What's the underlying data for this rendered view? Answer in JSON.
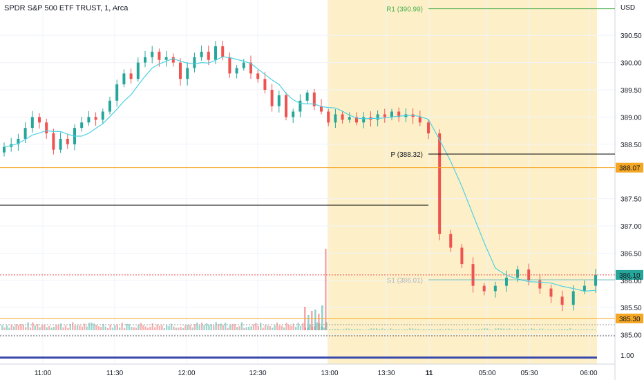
{
  "header": {
    "title": "SPDR S&P 500 ETF TRUST, 1, Arca"
  },
  "chart_data": {
    "type": "candlestick",
    "currency_label": "USD",
    "y_ticks": [
      "390.50",
      "390.00",
      "389.50",
      "389.00",
      "388.50",
      "387.50",
      "387.00",
      "386.50",
      "386.00",
      "385.50",
      "385.00"
    ],
    "y_tick_values": [
      390.5,
      390.0,
      389.5,
      389.0,
      388.5,
      387.5,
      387.0,
      386.5,
      386.0,
      385.5,
      385.0
    ],
    "y_range": [
      384.55,
      391.15
    ],
    "volume_scale_label": "1.00",
    "x_ticks": [
      {
        "label": "11:00",
        "bold": false
      },
      {
        "label": "11:30",
        "bold": false
      },
      {
        "label": "12:00",
        "bold": false
      },
      {
        "label": "12:30",
        "bold": false
      },
      {
        "label": "13:00",
        "bold": false
      },
      {
        "label": "13:30",
        "bold": false
      },
      {
        "label": "11",
        "bold": true
      },
      {
        "label": "05:00",
        "bold": false
      },
      {
        "label": "05:30",
        "bold": false
      },
      {
        "label": "06:00",
        "bold": false
      }
    ],
    "levels": {
      "r1": {
        "label": "R1 (390.99)",
        "value": 390.99,
        "color": "#4caf50"
      },
      "p": {
        "label": "P (388.32)",
        "value": 388.32,
        "color": "#000000"
      },
      "s1": {
        "label": "S1 (386.01)",
        "value": 386.01,
        "color": "#b2b5be"
      }
    },
    "price_tags": [
      {
        "label": "388.07",
        "value": 388.07,
        "color": "#f5a623",
        "text_color": "#131722"
      },
      {
        "label": "386.10",
        "value": 386.1,
        "color": "#26a69a",
        "text_color": "#ffffff"
      },
      {
        "label": "385.30",
        "value": 385.3,
        "color": "#f5a623",
        "text_color": "#131722"
      }
    ],
    "colors": {
      "up": "#26a69a",
      "down": "#ef5350",
      "ma": "#4dd0e1",
      "session_bg": "#fdf0c8",
      "grid": "#f0f3fa"
    },
    "series": [
      {
        "name": "",
        "values": [
          388.45,
          388.5,
          388.6,
          388.8,
          389.0,
          388.9,
          388.7,
          388.4,
          388.6,
          388.5,
          388.8,
          388.9,
          389.0,
          388.95,
          389.1,
          389.3,
          389.6,
          389.8,
          389.7,
          390.0,
          390.1,
          390.2,
          390.05,
          390.1,
          390.0,
          389.7,
          389.9,
          390.1,
          390.2,
          390.05,
          390.3,
          390.1,
          389.8,
          389.9,
          390.0,
          389.8,
          389.7,
          389.5,
          389.2,
          389.4,
          389.0,
          389.1,
          389.3,
          389.45,
          389.2,
          389.1,
          388.9,
          389.05,
          388.95,
          389.0,
          388.9,
          389.0,
          388.95,
          389.05,
          389.0,
          389.1,
          389.0,
          389.05,
          389.0,
          388.9,
          388.7,
          386.85,
          386.6,
          386.3,
          385.9,
          385.8,
          385.9,
          386.05,
          386.2,
          386.0,
          385.85,
          385.7,
          385.55,
          385.8,
          385.9,
          386.1
        ]
      }
    ]
  }
}
